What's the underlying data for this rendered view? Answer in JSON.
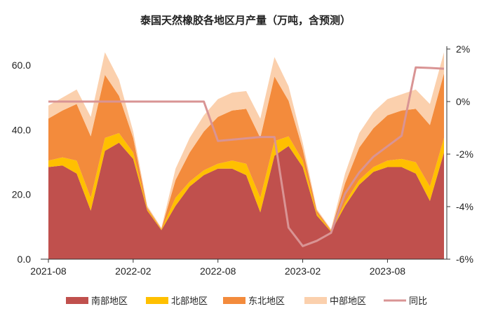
{
  "chart_data": {
    "type": "area",
    "title": "泰国天然橡胶各地区月产量（万吨，含预测）",
    "x": [
      "2021-08",
      "2021-09",
      "2021-10",
      "2021-11",
      "2021-12",
      "2022-01",
      "2022-02",
      "2022-03",
      "2022-04",
      "2022-05",
      "2022-06",
      "2022-07",
      "2022-08",
      "2022-09",
      "2022-10",
      "2022-11",
      "2022-12",
      "2023-01",
      "2023-02",
      "2023-03",
      "2023-04",
      "2023-05",
      "2023-06",
      "2023-07",
      "2023-08",
      "2023-09",
      "2023-10",
      "2023-11",
      "2023-12"
    ],
    "x_tick_labels": [
      "2021-08",
      "2022-02",
      "2022-08",
      "2023-02",
      "2023-08"
    ],
    "y_left_ticks": [
      "0.0",
      "20.0",
      "40.0",
      "60.0"
    ],
    "y_right_ticks": [
      "-6%",
      "-4%",
      "-2%",
      "0%",
      "2%"
    ],
    "ylim_left": [
      0,
      65
    ],
    "ylim_right": [
      -6,
      2
    ],
    "stacked": true,
    "legend_position": "bottom",
    "series": [
      {
        "name": "南部地区",
        "color": "#c0504d",
        "axis": "left",
        "values": [
          28.5,
          29.0,
          26.5,
          15.0,
          33.5,
          36.0,
          31.0,
          15.0,
          9.0,
          16.5,
          22.5,
          26.0,
          28.0,
          28.0,
          26.0,
          14.5,
          32.0,
          35.0,
          28.5,
          13.5,
          8.5,
          16.5,
          23.0,
          27.0,
          28.5,
          28.5,
          26.5,
          18.0,
          33.0
        ]
      },
      {
        "name": "北部地区",
        "color": "#ffc000",
        "axis": "left",
        "values": [
          2.0,
          2.5,
          4.0,
          4.0,
          4.0,
          3.0,
          2.0,
          0.5,
          0.2,
          2.5,
          1.5,
          1.5,
          1.5,
          2.5,
          3.5,
          4.5,
          4.5,
          3.0,
          2.0,
          0.7,
          0.3,
          1.0,
          1.5,
          1.5,
          2.0,
          2.5,
          3.5,
          4.5,
          4.5
        ]
      },
      {
        "name": "东北地区",
        "color": "#f38b3c",
        "axis": "left",
        "values": [
          13.0,
          14.5,
          17.5,
          19.0,
          19.5,
          11.5,
          4.5,
          0.5,
          0.2,
          5.5,
          9.0,
          12.0,
          14.5,
          15.5,
          17.0,
          18.5,
          20.0,
          11.0,
          3.5,
          0.8,
          0.2,
          6.0,
          10.0,
          12.0,
          14.0,
          15.0,
          16.5,
          19.0,
          20.0
        ]
      },
      {
        "name": "中部地区",
        "color": "#fbd0ad",
        "axis": "left",
        "values": [
          4.0,
          4.0,
          4.5,
          6.0,
          7.0,
          5.0,
          2.0,
          0.5,
          0.3,
          3.5,
          4.5,
          5.0,
          5.5,
          5.5,
          5.5,
          6.0,
          6.0,
          4.5,
          2.0,
          0.5,
          0.3,
          3.0,
          4.5,
          5.0,
          5.0,
          5.0,
          6.0,
          6.5,
          6.5
        ]
      },
      {
        "name": "同比",
        "color": "#d99494",
        "axis": "right",
        "type": "line",
        "values": [
          0.0,
          0.0,
          0.0,
          0.0,
          0.0,
          0.0,
          0.0,
          0.0,
          0.0,
          0.0,
          0.0,
          0.0,
          -1.5,
          -1.45,
          -1.4,
          -1.35,
          -1.35,
          -4.8,
          -5.5,
          -5.3,
          -5.0,
          -3.5,
          -2.7,
          -2.1,
          -1.7,
          -1.3,
          1.3,
          1.28,
          1.25
        ]
      }
    ]
  }
}
